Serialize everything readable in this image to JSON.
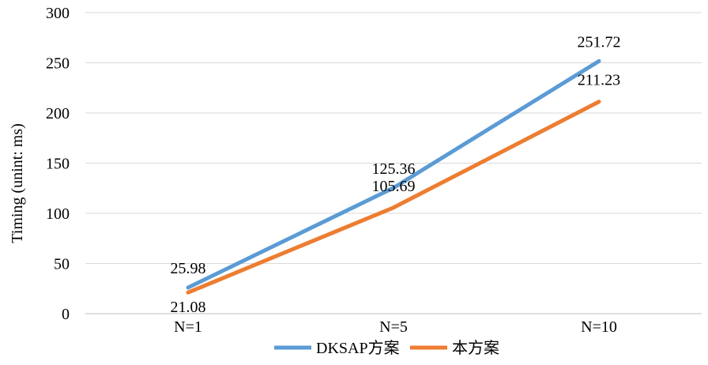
{
  "chart_data": {
    "type": "line",
    "title": "",
    "xlabel": "",
    "ylabel": "Timing (unint: ms)",
    "categories": [
      "N=1",
      "N=5",
      "N=10"
    ],
    "ylim": [
      0,
      300
    ],
    "yticks": [
      0,
      50,
      100,
      150,
      200,
      250,
      300
    ],
    "grid": true,
    "legend_position": "bottom",
    "series": [
      {
        "name": "DKSAP方案",
        "color": "#5b9bd5",
        "values": [
          25.98,
          125.36,
          251.72
        ],
        "labels": [
          "25.98",
          "125.36",
          "251.72"
        ]
      },
      {
        "name": "本方案",
        "color": "#ed7d31",
        "values": [
          21.08,
          105.69,
          211.23
        ],
        "labels": [
          "21.08",
          "105.69",
          "211.23"
        ]
      }
    ]
  }
}
